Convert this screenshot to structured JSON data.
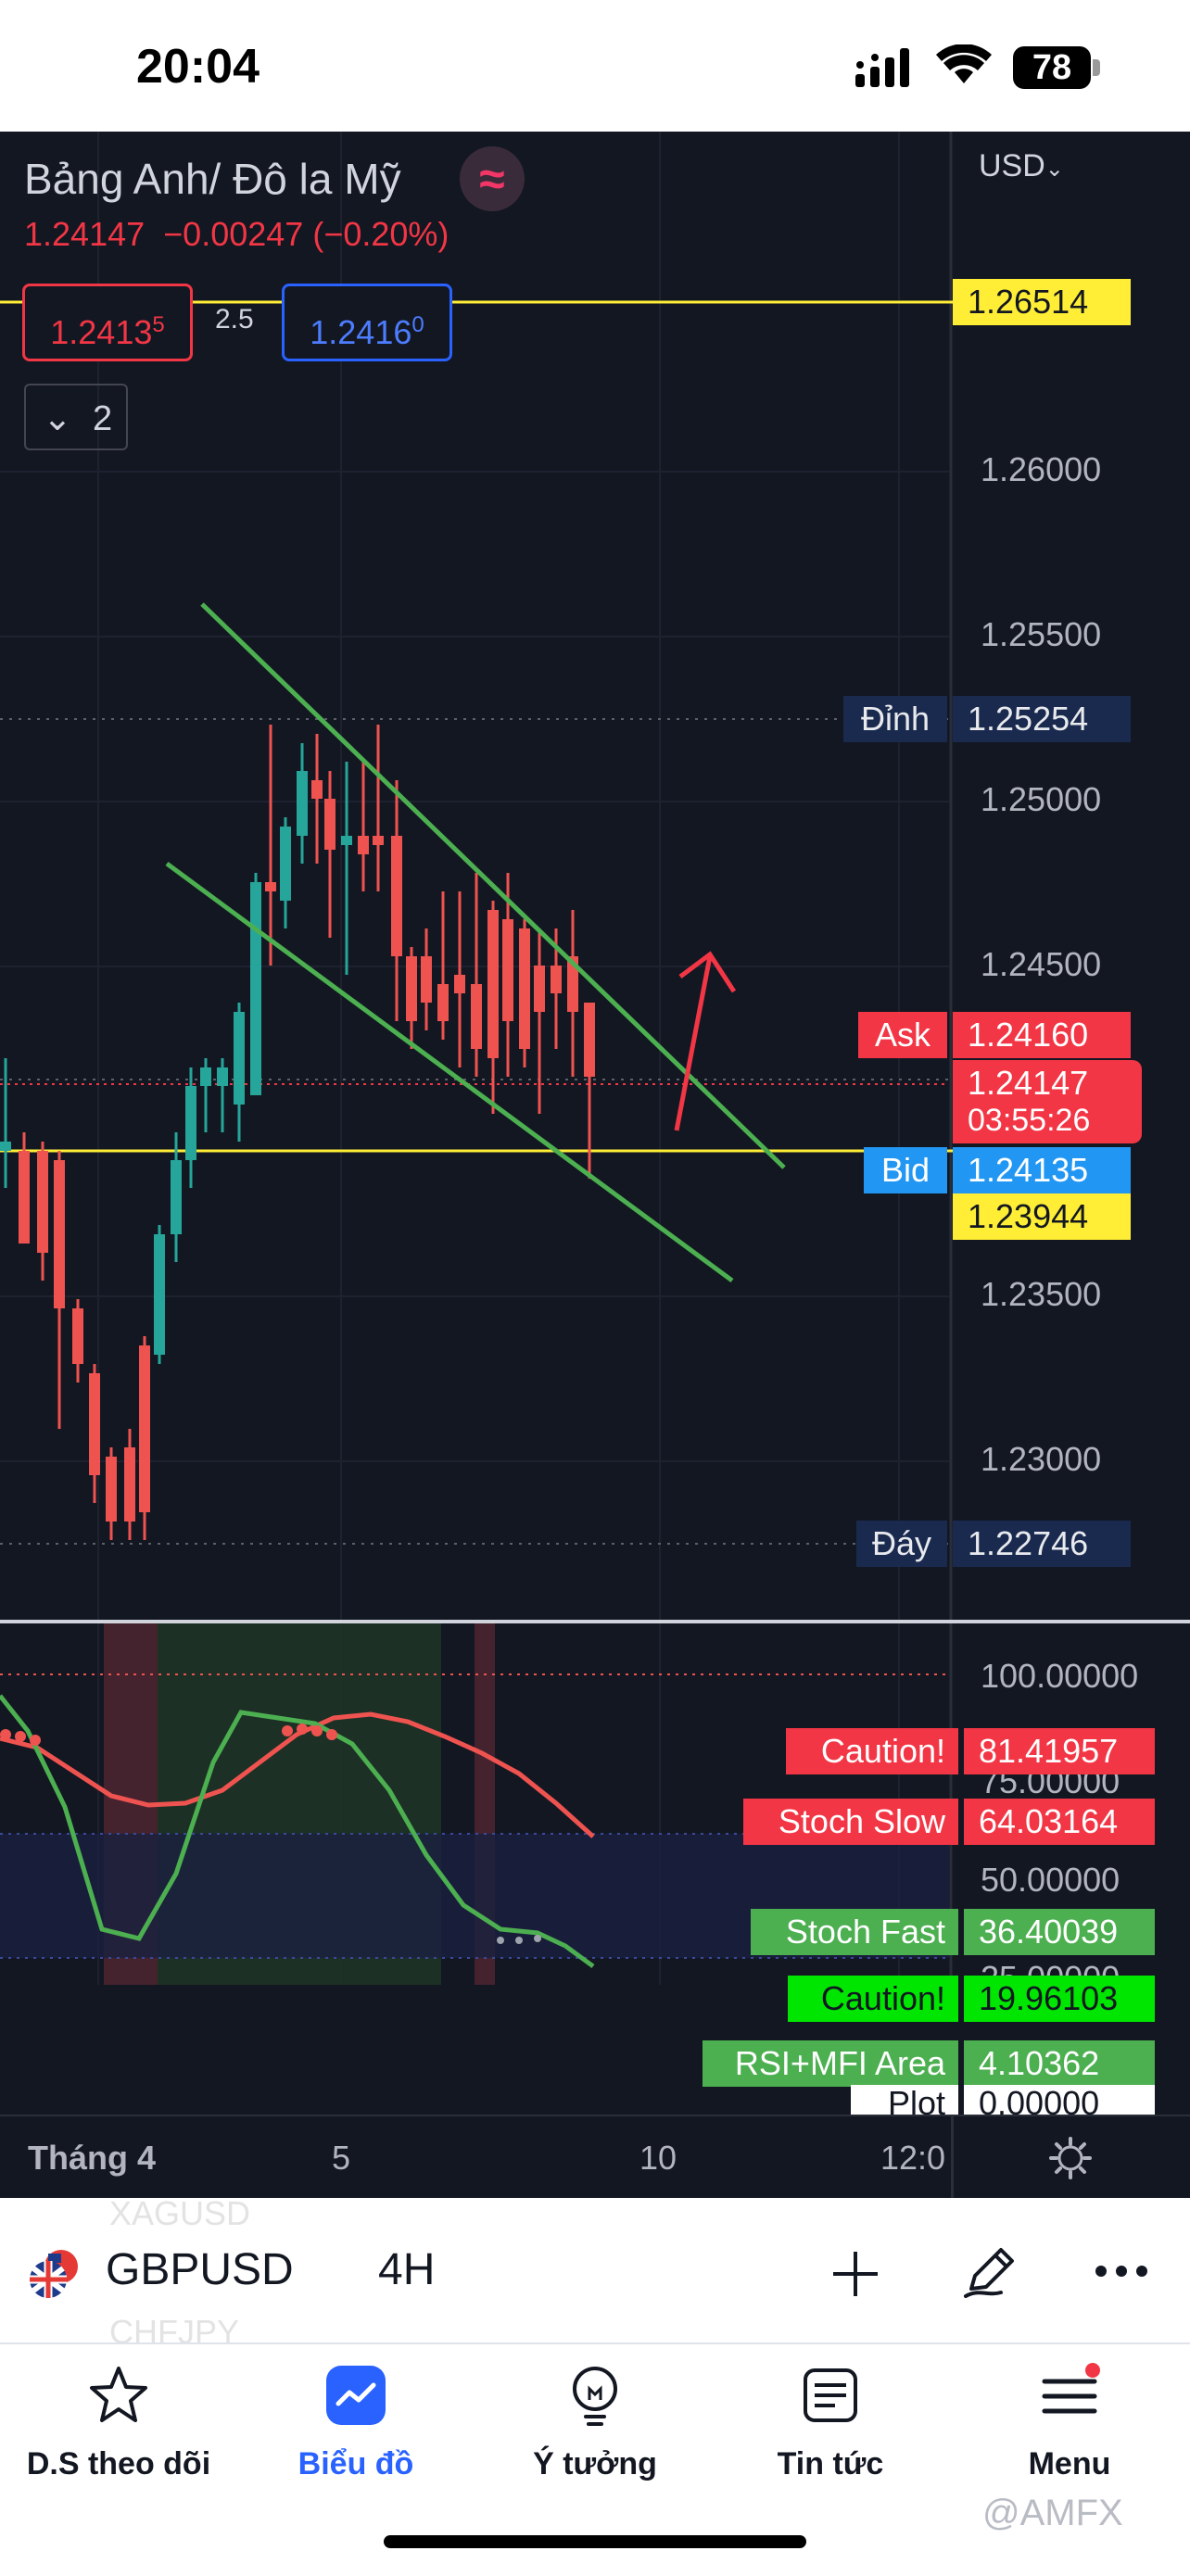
{
  "status_bar": {
    "time": "20:04",
    "battery": "78"
  },
  "header": {
    "symbol_title": "Bảng Anh/ Đô la Mỹ",
    "price": "1.24147",
    "change": "−0.00247",
    "change_pct": "(−0.20%)",
    "currency": "USD",
    "sell_price": "1.2413",
    "sell_sup": "5",
    "spread": "2.5",
    "buy_price": "1.2416",
    "buy_sup": "0",
    "collapse_count": "2"
  },
  "price_axis": [
    "1.26000",
    "1.25500",
    "1.25000",
    "1.24500",
    "1.23500",
    "1.23000"
  ],
  "price_tags": {
    "line_top": "1.26514",
    "high_label": "Đỉnh",
    "high_value": "1.25254",
    "ask_label": "Ask",
    "ask_value": "1.24160",
    "last_value": "1.24147",
    "countdown": "03:55:26",
    "bid_label": "Bid",
    "bid_value": "1.24135",
    "line_bottom": "1.23944",
    "low_label": "Đáy",
    "low_value": "1.22746"
  },
  "indicator_axis": [
    "100.00000",
    "75.00000",
    "50.00000",
    "25.00000"
  ],
  "indicator_tags": [
    {
      "label": "Caution!",
      "value": "81.41957"
    },
    {
      "label": "Stoch Slow",
      "value": "64.03164"
    },
    {
      "label": "Stoch Fast",
      "value": "36.40039"
    },
    {
      "label": "Caution!",
      "value": "19.96103"
    },
    {
      "label": "RSI+MFI Area",
      "value": "4.10362"
    },
    {
      "label": "Plot",
      "value": "0.00000"
    }
  ],
  "time_axis": [
    "Tháng 4",
    "5",
    "10",
    "12:0"
  ],
  "symbol_bar": {
    "ghost_top": "XAGUSD",
    "ghost_bottom": "CHFJPY",
    "symbol": "GBPUSD",
    "timeframe": "4H"
  },
  "nav": [
    {
      "label": "D.S theo dõi",
      "icon": "star-icon"
    },
    {
      "label": "Biểu đồ",
      "icon": "chart-icon"
    },
    {
      "label": "Ý tưởng",
      "icon": "lightbulb-icon"
    },
    {
      "label": "Tin tức",
      "icon": "news-icon"
    },
    {
      "label": "Menu",
      "icon": "menu-icon"
    }
  ],
  "watermark": "@AMFX",
  "colors": {
    "up": "#26a69a",
    "down": "#ef5350",
    "trendline": "#4caf50",
    "arrow": "#f23645",
    "level": "#ffee35",
    "accent": "#2962ff"
  }
}
